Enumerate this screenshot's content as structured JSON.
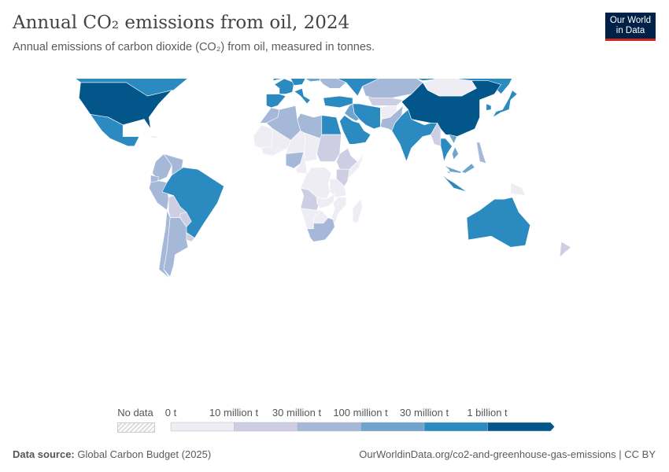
{
  "header": {
    "title": "Annual CO₂ emissions from oil, 2024",
    "subtitle": "Annual emissions of carbon dioxide (CO₂) from oil, measured in tonnes.",
    "logo": [
      "Our World",
      "in Data"
    ]
  },
  "legend": {
    "no_data_label": "No data",
    "bins": [
      "0 t",
      "10 million t",
      "30 million t",
      "100 million t",
      "30 million t",
      "1 billion t"
    ],
    "colors": [
      "#eeedf4",
      "#cdcde3",
      "#a5b8d8",
      "#6fa5cc",
      "#2b8abf",
      "#02568a"
    ],
    "no_data_color": "#e8e8e8"
  },
  "map_data": {
    "United States": 5,
    "China": 5,
    "Canada": 4,
    "Russia": 4,
    "India": 4,
    "Brazil": 4,
    "Mexico": 4,
    "Australia": 4,
    "Saudi Arabia": 4,
    "Iran": 4,
    "Japan": 4,
    "South Korea": 4,
    "Indonesia": 4,
    "Germany": 4,
    "France": 4,
    "United Kingdom": 4,
    "Spain": 4,
    "Italy": 4,
    "Turkey": 4,
    "Egypt": 4,
    "Thailand": 4,
    "Alaska": 5,
    "Kazakhstan": 2,
    "Argentina": 2,
    "South Africa": 2,
    "Algeria": 2,
    "Nigeria": 2,
    "Colombia": 2,
    "Peru": 2,
    "Chile": 2,
    "Pakistan": 2,
    "Iraq": 3,
    "Ukraine": 2,
    "Poland": 3,
    "Libya": 2,
    "Sudan": 1,
    "Venezuela": 2,
    "Ecuador": 2,
    "Malaysia": 3,
    "Vietnam": 3,
    "Philippines": 2,
    "Mongolia": 0,
    "Greenland": 0,
    "Mali": 0,
    "Niger": 0,
    "Chad": 0,
    "Mauritania": 0,
    "DR Congo": 0,
    "Angola": 1,
    "Ethiopia": 1,
    "Kenya": 1,
    "Tanzania": 0,
    "Zambia": 0,
    "Namibia": 0,
    "Botswana": 0,
    "Madagascar": 0,
    "Mozambique": 0,
    "Bolivia": 1,
    "Paraguay": 1,
    "Uruguay": 1,
    "Afghanistan": 0,
    "Myanmar": 1,
    "Scandinavia": 1,
    "Finland": 1,
    "Central Asia": 1,
    "Papua New Guinea": 0,
    "New Zealand": 1,
    "Morocco": 2,
    "Cameroon": 0,
    "Somalia": 0,
    "Cuba": 1
  },
  "footer": {
    "source_label": "Data source:",
    "source": "Global Carbon Budget (2025)",
    "url": "OurWorldinData.org/co2-and-greenhouse-gas-emissions | CC BY"
  }
}
